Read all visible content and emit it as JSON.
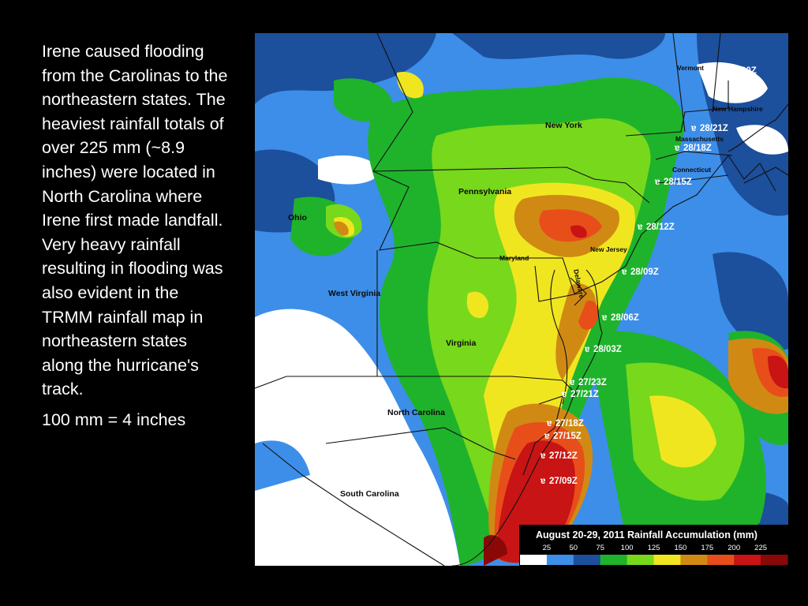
{
  "description_text": {
    "main": "Irene caused flooding from the Carolinas to the northeastern states. The heaviest rainfall totals of over 225 mm (~8.9 inches) were located in North Carolina where Irene first made landfall. Very heavy rainfall resulting in flooding was also evident in the TRMM rainfall map in northeastern states along the hurricane's track.",
    "note": "100 mm = 4 inches"
  },
  "map": {
    "states": {
      "vermont": "Vermont",
      "new_hampshire": "New Hampshire",
      "new_york": "New York",
      "massachusetts": "Massachusetts",
      "connecticut": "Connecticut",
      "pennsylvania": "Pennsylvania",
      "ohio": "Ohio",
      "maryland": "Maryland",
      "new_jersey": "New Jersey",
      "delaware": "Delaware",
      "west_virginia": "West Virginia",
      "virginia": "Virginia",
      "north_carolina": "North Carolina",
      "south_carolina": "South Carolina"
    },
    "track_icon": "hurricane-symbol-icon",
    "track_points": [
      "29/00Z",
      "28/21Z",
      "28/18Z",
      "28/15Z",
      "28/12Z",
      "28/09Z",
      "28/06Z",
      "28/03Z",
      "27/23Z",
      "27/21Z",
      "27/18Z",
      "27/15Z",
      "27/12Z",
      "27/09Z"
    ],
    "legend": {
      "title": "August 20-29, 2011 Rainfall Accumulation (mm)",
      "ticks": [
        "25",
        "50",
        "75",
        "100",
        "125",
        "150",
        "175",
        "200",
        "225"
      ],
      "colors": [
        "#ffffff",
        "#3d8ee8",
        "#1c4f9c",
        "#1fb32b",
        "#78d81c",
        "#f0e620",
        "#d08a14",
        "#e84e1a",
        "#c81414",
        "#8a0808"
      ]
    }
  }
}
